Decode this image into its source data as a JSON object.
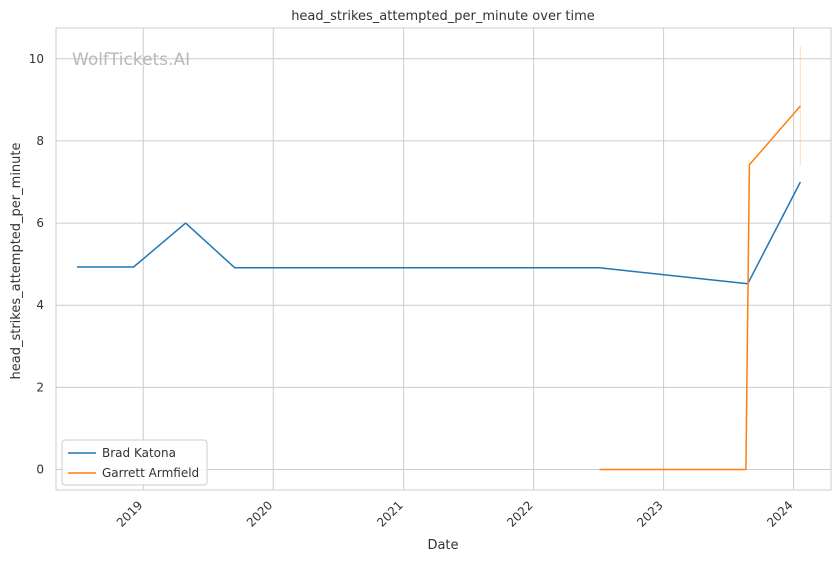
{
  "chart_data": {
    "type": "line",
    "title": "head_strikes_attempted_per_minute over time",
    "xlabel": "Date",
    "ylabel": "head_strikes_attempted_per_minute",
    "watermark": "WolfTickets.AI",
    "xlim": [
      "2018-05-01",
      "2024-04-15"
    ],
    "ylim": [
      -0.5,
      10.75
    ],
    "x_ticks": [
      "2019",
      "2020",
      "2021",
      "2022",
      "2023",
      "2024"
    ],
    "y_ticks": [
      "0",
      "2",
      "4",
      "6",
      "8",
      "10"
    ],
    "grid": true,
    "legend_position": "lower-left",
    "series": [
      {
        "name": "Brad Katona",
        "color": "#1f77b4",
        "points": [
          {
            "x": "2018-06-29",
            "y": 4.93
          },
          {
            "x": "2018-12-05",
            "y": 4.93
          },
          {
            "x": "2019-04-30",
            "y": 6.0
          },
          {
            "x": "2019-09-15",
            "y": 4.91
          },
          {
            "x": "2022-07-05",
            "y": 4.91
          },
          {
            "x": "2023-08-25",
            "y": 4.52
          },
          {
            "x": "2024-01-20",
            "y": 7.0
          }
        ]
      },
      {
        "name": "Garrett Armfield",
        "color": "#ff7f0e",
        "points": [
          {
            "x": "2022-07-05",
            "y": 0.0
          },
          {
            "x": "2023-08-20",
            "y": 0.0
          },
          {
            "x": "2023-08-30",
            "y": 7.42
          },
          {
            "x": "2024-01-20",
            "y": 8.85
          }
        ],
        "error_band": {
          "x": "2024-01-20",
          "low": 7.4,
          "high": 10.3
        }
      }
    ]
  }
}
